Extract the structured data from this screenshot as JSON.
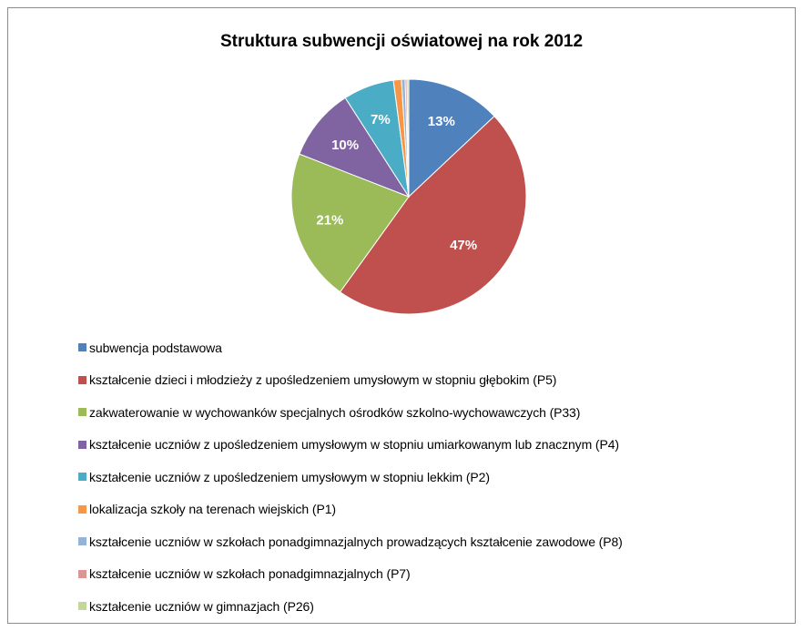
{
  "chart_data": {
    "type": "pie",
    "title": "Struktura subwencji oświatowej na rok 2012",
    "legend_position": "bottom",
    "slices": [
      {
        "label": "subwencja podstawowa",
        "value": 13,
        "display": "13%",
        "color": "#4F81BD"
      },
      {
        "label": "kształcenie dzieci i młodzieży z upośledzeniem umysłowym w stopniu głębokim (P5)",
        "value": 47,
        "display": "47%",
        "color": "#C0504D"
      },
      {
        "label": "zakwaterowanie w wychowanków specjalnych ośrodków szkolno-wychowawczych (P33)",
        "value": 21,
        "display": "21%",
        "color": "#9BBB59"
      },
      {
        "label": "kształcenie uczniów z upośledzeniem umysłowym w stopniu umiarkowanym lub znacznym (P4)",
        "value": 10,
        "display": "10%",
        "color": "#8064A2"
      },
      {
        "label": "kształcenie uczniów z upośledzeniem umysłowym w stopniu lekkim (P2)",
        "value": 7,
        "display": "7%",
        "color": "#4BACC6"
      },
      {
        "label": "lokalizacja szkoły na terenach wiejskich (P1)",
        "value": 1.1,
        "display": "",
        "color": "#F79646"
      },
      {
        "label": "kształcenie uczniów w szkołach ponadgimnazjalnych prowadzących kształcenie zawodowe (P8)",
        "value": 0.5,
        "display": "",
        "color": "#95B3D7"
      },
      {
        "label": "kształcenie uczniów w szkołach ponadgimnazjalnych (P7)",
        "value": 0.25,
        "display": "",
        "color": "#D99694"
      },
      {
        "label": "kształcenie uczniów w gimnazjach (P26)",
        "value": 0.25,
        "display": "",
        "color": "#C3D69B"
      }
    ]
  }
}
